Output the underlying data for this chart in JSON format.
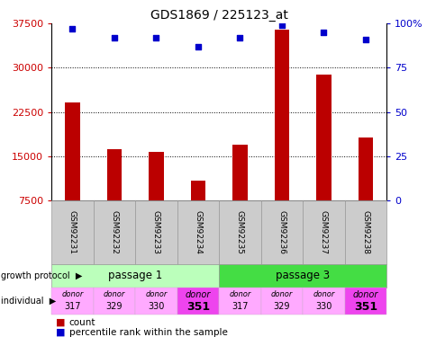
{
  "title": "GDS1869 / 225123_at",
  "samples": [
    "GSM92231",
    "GSM92232",
    "GSM92233",
    "GSM92234",
    "GSM92235",
    "GSM92236",
    "GSM92237",
    "GSM92238"
  ],
  "counts": [
    24200,
    16200,
    15700,
    10800,
    17000,
    36500,
    28800,
    18200
  ],
  "percentiles": [
    97,
    92,
    92,
    87,
    92,
    99,
    95,
    91
  ],
  "ylim_left": [
    7500,
    37500
  ],
  "ylim_right": [
    0,
    100
  ],
  "yticks_left": [
    7500,
    15000,
    22500,
    30000,
    37500
  ],
  "yticks_right": [
    0,
    25,
    50,
    75,
    100
  ],
  "passage1_color": "#bbffbb",
  "passage3_color": "#44dd44",
  "ind_light_color": "#ffaaff",
  "ind_dark_color": "#ee44ee",
  "bar_color": "#bb0000",
  "dot_color": "#0000cc",
  "sample_box_color": "#cccccc",
  "left_axis_color": "#cc0000",
  "right_axis_color": "#0000cc",
  "legend_red": "#bb0000",
  "legend_blue": "#0000cc"
}
